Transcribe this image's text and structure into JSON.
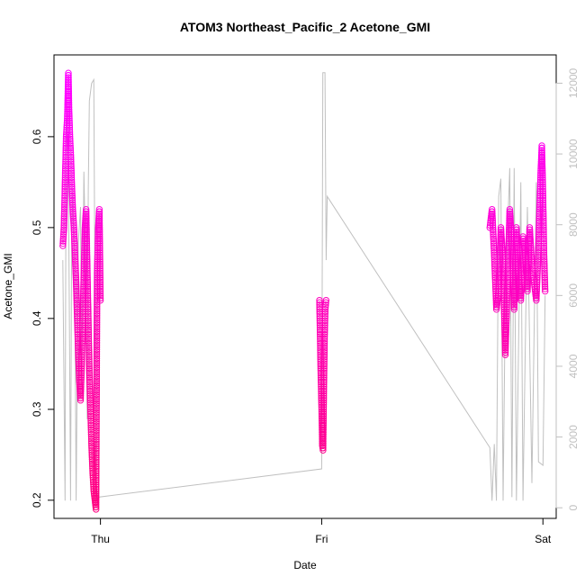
{
  "chart_data": {
    "type": "scatter",
    "title": "ATOM3 Northeast_Pacific_2 Acetone_GMI",
    "xlabel": "Date",
    "ylabel": "Acetone_GMI",
    "x_ticks": [
      "Thu",
      "Fri",
      "Sat"
    ],
    "x_tick_values": [
      1.0,
      2.0,
      3.0
    ],
    "xlim": [
      0.79,
      3.06
    ],
    "ylim": [
      0.18,
      0.69
    ],
    "y_ticks": [
      "0.2",
      "0.3",
      "0.4",
      "0.5",
      "0.6"
    ],
    "y_tick_values": [
      0.2,
      0.3,
      0.4,
      0.5,
      0.6
    ],
    "y2lim": [
      -300,
      12800
    ],
    "y2_ticks": [
      "0",
      "2000",
      "4000",
      "6000",
      "8000",
      "10000",
      "12000"
    ],
    "y2_tick_values": [
      0,
      2000,
      4000,
      6000,
      8000,
      10000,
      12000
    ],
    "grid": false,
    "colors": {
      "low": "#ff0080",
      "high": "#ff00ff",
      "secondary": "#c0c0c0"
    },
    "series": [
      {
        "type": "scatter",
        "axis": "left",
        "values": [
          {
            "x": 0.83,
            "y": 0.48
          },
          {
            "x": 0.835,
            "y": 0.5
          },
          {
            "x": 0.84,
            "y": 0.55
          },
          {
            "x": 0.845,
            "y": 0.6
          },
          {
            "x": 0.85,
            "y": 0.62
          },
          {
            "x": 0.852,
            "y": 0.64
          },
          {
            "x": 0.855,
            "y": 0.67
          },
          {
            "x": 0.858,
            "y": 0.63
          },
          {
            "x": 0.862,
            "y": 0.6
          },
          {
            "x": 0.866,
            "y": 0.58
          },
          {
            "x": 0.87,
            "y": 0.55
          },
          {
            "x": 0.875,
            "y": 0.52
          },
          {
            "x": 0.88,
            "y": 0.5
          },
          {
            "x": 0.885,
            "y": 0.47
          },
          {
            "x": 0.89,
            "y": 0.44
          },
          {
            "x": 0.895,
            "y": 0.4
          },
          {
            "x": 0.9,
            "y": 0.36
          },
          {
            "x": 0.905,
            "y": 0.33
          },
          {
            "x": 0.91,
            "y": 0.31
          },
          {
            "x": 0.915,
            "y": 0.35
          },
          {
            "x": 0.92,
            "y": 0.4
          },
          {
            "x": 0.925,
            "y": 0.45
          },
          {
            "x": 0.93,
            "y": 0.5
          },
          {
            "x": 0.935,
            "y": 0.52
          },
          {
            "x": 0.94,
            "y": 0.46
          },
          {
            "x": 0.945,
            "y": 0.4
          },
          {
            "x": 0.95,
            "y": 0.34
          },
          {
            "x": 0.955,
            "y": 0.3
          },
          {
            "x": 0.96,
            "y": 0.26
          },
          {
            "x": 0.965,
            "y": 0.23
          },
          {
            "x": 0.97,
            "y": 0.21
          },
          {
            "x": 0.975,
            "y": 0.2
          },
          {
            "x": 0.98,
            "y": 0.19
          },
          {
            "x": 0.985,
            "y": 0.45
          },
          {
            "x": 0.99,
            "y": 0.5
          },
          {
            "x": 0.995,
            "y": 0.52
          },
          {
            "x": 1.0,
            "y": 0.42
          },
          {
            "x": 1.99,
            "y": 0.42
          },
          {
            "x": 1.993,
            "y": 0.38
          },
          {
            "x": 1.996,
            "y": 0.34
          },
          {
            "x": 2.0,
            "y": 0.3
          },
          {
            "x": 2.003,
            "y": 0.26
          },
          {
            "x": 2.006,
            "y": 0.255
          },
          {
            "x": 2.01,
            "y": 0.33
          },
          {
            "x": 2.013,
            "y": 0.38
          },
          {
            "x": 2.016,
            "y": 0.41
          },
          {
            "x": 2.02,
            "y": 0.42
          },
          {
            "x": 2.76,
            "y": 0.5
          },
          {
            "x": 2.77,
            "y": 0.52
          },
          {
            "x": 2.78,
            "y": 0.47
          },
          {
            "x": 2.79,
            "y": 0.41
          },
          {
            "x": 2.8,
            "y": 0.43
          },
          {
            "x": 2.81,
            "y": 0.5
          },
          {
            "x": 2.82,
            "y": 0.46
          },
          {
            "x": 2.83,
            "y": 0.36
          },
          {
            "x": 2.84,
            "y": 0.44
          },
          {
            "x": 2.85,
            "y": 0.52
          },
          {
            "x": 2.86,
            "y": 0.48
          },
          {
            "x": 2.87,
            "y": 0.41
          },
          {
            "x": 2.88,
            "y": 0.5
          },
          {
            "x": 2.89,
            "y": 0.45
          },
          {
            "x": 2.9,
            "y": 0.42
          },
          {
            "x": 2.91,
            "y": 0.49
          },
          {
            "x": 2.92,
            "y": 0.47
          },
          {
            "x": 2.93,
            "y": 0.43
          },
          {
            "x": 2.94,
            "y": 0.5
          },
          {
            "x": 2.95,
            "y": 0.46
          },
          {
            "x": 2.96,
            "y": 0.44
          },
          {
            "x": 2.97,
            "y": 0.42
          },
          {
            "x": 2.98,
            "y": 0.48
          },
          {
            "x": 2.99,
            "y": 0.56
          },
          {
            "x": 2.995,
            "y": 0.59
          },
          {
            "x": 3.0,
            "y": 0.54
          },
          {
            "x": 3.005,
            "y": 0.47
          },
          {
            "x": 3.01,
            "y": 0.43
          }
        ]
      },
      {
        "type": "line",
        "axis": "right",
        "values": [
          {
            "x": 0.83,
            "y": 7000
          },
          {
            "x": 0.84,
            "y": 200
          },
          {
            "x": 0.845,
            "y": 11000
          },
          {
            "x": 0.855,
            "y": 9500
          },
          {
            "x": 0.86,
            "y": 5000
          },
          {
            "x": 0.865,
            "y": 200
          },
          {
            "x": 0.87,
            "y": 8000
          },
          {
            "x": 0.875,
            "y": 9000
          },
          {
            "x": 0.88,
            "y": 7000
          },
          {
            "x": 0.885,
            "y": 5500
          },
          {
            "x": 0.89,
            "y": 200
          },
          {
            "x": 0.9,
            "y": 7500
          },
          {
            "x": 0.91,
            "y": 8500
          },
          {
            "x": 0.915,
            "y": 4000
          },
          {
            "x": 0.92,
            "y": 6000
          },
          {
            "x": 0.925,
            "y": 9500
          },
          {
            "x": 0.93,
            "y": 8000
          },
          {
            "x": 0.94,
            "y": 2500
          },
          {
            "x": 0.945,
            "y": 9000
          },
          {
            "x": 0.95,
            "y": 11500
          },
          {
            "x": 0.96,
            "y": 12000
          },
          {
            "x": 0.97,
            "y": 12100
          },
          {
            "x": 0.98,
            "y": 600
          },
          {
            "x": 0.99,
            "y": 300
          },
          {
            "x": 2.0,
            "y": 1100
          },
          {
            "x": 2.005,
            "y": 12300
          },
          {
            "x": 2.015,
            "y": 12300
          },
          {
            "x": 2.02,
            "y": 7000
          },
          {
            "x": 2.025,
            "y": 8800
          },
          {
            "x": 2.76,
            "y": 1700
          },
          {
            "x": 2.77,
            "y": 200
          },
          {
            "x": 2.78,
            "y": 1800
          },
          {
            "x": 2.79,
            "y": 200
          },
          {
            "x": 2.8,
            "y": 8800
          },
          {
            "x": 2.81,
            "y": 9300
          },
          {
            "x": 2.82,
            "y": 200
          },
          {
            "x": 2.83,
            "y": 6000
          },
          {
            "x": 2.85,
            "y": 9600
          },
          {
            "x": 2.86,
            "y": 300
          },
          {
            "x": 2.87,
            "y": 9600
          },
          {
            "x": 2.88,
            "y": 200
          },
          {
            "x": 2.9,
            "y": 9200
          },
          {
            "x": 2.91,
            "y": 200
          },
          {
            "x": 2.93,
            "y": 8500
          },
          {
            "x": 2.95,
            "y": 700
          },
          {
            "x": 2.97,
            "y": 9200
          },
          {
            "x": 2.98,
            "y": 1300
          },
          {
            "x": 3.0,
            "y": 1200
          },
          {
            "x": 3.01,
            "y": 6000
          }
        ]
      }
    ]
  }
}
